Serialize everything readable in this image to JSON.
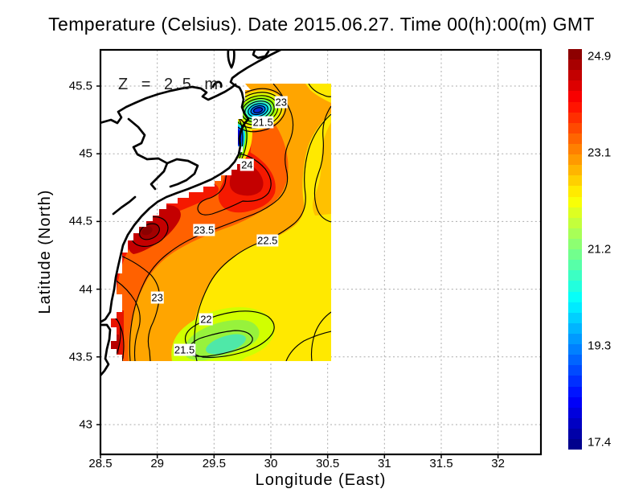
{
  "title": "Temperature (Celsius). Date 2015.06.27. Time 00(h):00(m) GMT",
  "annotation": "Z = 2.5 m",
  "x_axis": {
    "label": "Longitude (East)",
    "tick_labels": [
      "28.5",
      "29",
      "29.5",
      "30",
      "30.5",
      "31",
      "31.5",
      "32"
    ]
  },
  "y_axis": {
    "label": "Latitude (North)",
    "tick_labels": [
      "45.5",
      "45",
      "44.5",
      "44",
      "43.5",
      "43"
    ]
  },
  "colorbar": {
    "tick_labels": [
      "24.9",
      "23.1",
      "21.2",
      "19.3",
      "17.4"
    ],
    "max": 24.9,
    "min": 17.4,
    "colormap": "jet"
  },
  "chart_data": {
    "type": "heatmap",
    "variable": "Temperature (Celsius)",
    "date": "2015.06.27",
    "time": "00(h):00(m) GMT",
    "depth_label": "Z = 2.5 m",
    "xlabel": "Longitude (East)",
    "ylabel": "Latitude (North)",
    "x_ticks": [
      28.5,
      29,
      29.5,
      30,
      30.5,
      31,
      31.5,
      32
    ],
    "y_ticks": [
      45.5,
      45,
      44.5,
      44,
      43.5,
      43
    ],
    "xlim": [
      28.5,
      32.38
    ],
    "ylim": [
      42.77,
      45.77
    ],
    "grid": true,
    "colorbar_range": [
      17.4,
      24.9
    ],
    "colorbar_ticks": [
      24.9,
      23.1,
      21.2,
      19.3,
      17.4
    ],
    "contour_interval": 0.5,
    "data_extent": {
      "lon": [
        28.55,
        30.53
      ],
      "lat": [
        43.46,
        45.52
      ]
    },
    "contour_labels": [
      {
        "value": "23",
        "lon": 30.09,
        "lat": 45.38
      },
      {
        "value": "21.5",
        "lon": 29.93,
        "lat": 45.23
      },
      {
        "value": "24",
        "lon": 29.79,
        "lat": 44.92
      },
      {
        "value": "23.5",
        "lon": 29.41,
        "lat": 44.44
      },
      {
        "value": "22.5",
        "lon": 29.97,
        "lat": 44.36
      },
      {
        "value": "23",
        "lon": 29.0,
        "lat": 43.94
      },
      {
        "value": "22",
        "lon": 29.43,
        "lat": 43.78
      },
      {
        "value": "21.5",
        "lon": 29.24,
        "lat": 43.55
      }
    ],
    "features": [
      {
        "name": "cold upwelling eddy",
        "lon": 29.89,
        "lat": 45.32,
        "approx_temp_c": 19.5
      },
      {
        "name": "coastal cold streak",
        "lon": 29.72,
        "lat": 45.12,
        "approx_temp_c": 18.0
      },
      {
        "name": "warm coastal plume",
        "lon": 29.8,
        "lat": 44.85,
        "approx_temp_c": 24.3
      },
      {
        "name": "warm spot off cape",
        "lon": 28.93,
        "lat": 44.42,
        "approx_temp_c": 24.8
      },
      {
        "name": "cool offshore patch",
        "lon": 29.6,
        "lat": 43.62,
        "approx_temp_c": 21.3
      }
    ]
  }
}
